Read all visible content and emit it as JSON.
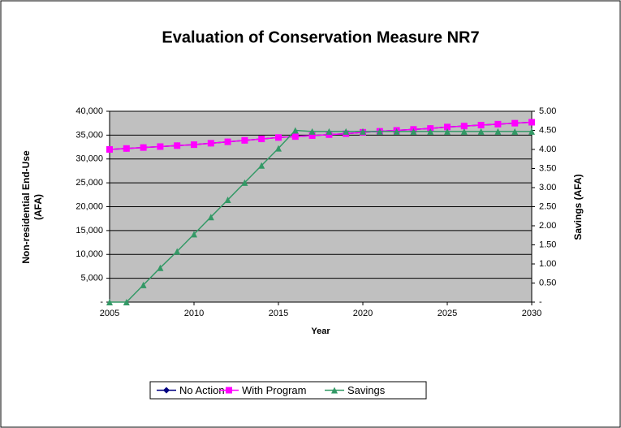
{
  "chart_data": {
    "type": "line",
    "title": "Evaluation of Conservation Measure NR7",
    "xlabel": "Year",
    "ylabel": [
      "Non-residential End-Use",
      "(AFA)"
    ],
    "y2label": "Savings (AFA)",
    "x": [
      2005,
      2006,
      2007,
      2008,
      2009,
      2010,
      2011,
      2012,
      2013,
      2014,
      2015,
      2016,
      2017,
      2018,
      2019,
      2020,
      2021,
      2022,
      2023,
      2024,
      2025,
      2026,
      2027,
      2028,
      2029,
      2030
    ],
    "xlim": [
      2005,
      2030
    ],
    "xticks": [
      2005,
      2010,
      2015,
      2020,
      2025,
      2030
    ],
    "ylim": [
      0,
      40000
    ],
    "yticks": [
      {
        "value": 0,
        "label": "-"
      },
      {
        "value": 5000,
        "label": "5,000"
      },
      {
        "value": 10000,
        "label": "10,000"
      },
      {
        "value": 15000,
        "label": "15,000"
      },
      {
        "value": 20000,
        "label": "20,000"
      },
      {
        "value": 25000,
        "label": "25,000"
      },
      {
        "value": 30000,
        "label": "30,000"
      },
      {
        "value": 35000,
        "label": "35,000"
      },
      {
        "value": 40000,
        "label": "40,000"
      }
    ],
    "y2lim": [
      0,
      5
    ],
    "y2ticks": [
      {
        "value": 0,
        "label": "-"
      },
      {
        "value": 0.5,
        "label": "0.50"
      },
      {
        "value": 1,
        "label": "1.00"
      },
      {
        "value": 1.5,
        "label": "1.50"
      },
      {
        "value": 2,
        "label": "2.00"
      },
      {
        "value": 2.5,
        "label": "2.50"
      },
      {
        "value": 3,
        "label": "3.00"
      },
      {
        "value": 3.5,
        "label": "3.50"
      },
      {
        "value": 4,
        "label": "4.00"
      },
      {
        "value": 4.5,
        "label": "4.50"
      },
      {
        "value": 5,
        "label": "5.00"
      }
    ],
    "grid": true,
    "legend": "bottom",
    "series": [
      {
        "name": "No Action",
        "color": "#000080",
        "marker": "diamond",
        "values": [
          32000,
          32200,
          32400,
          32600,
          32800,
          33000,
          33300,
          33600,
          33900,
          34200,
          34500,
          34700,
          34900,
          35100,
          35300,
          35600,
          35800,
          36000,
          36200,
          36400,
          36700,
          36900,
          37100,
          37300,
          37500,
          37700
        ]
      },
      {
        "name": "With Program",
        "color": "#FF00FF",
        "marker": "square",
        "values": [
          32000,
          32200,
          32400,
          32600,
          32800,
          33000,
          33300,
          33600,
          33900,
          34200,
          34500,
          34700,
          34900,
          35100,
          35300,
          35600,
          35800,
          36000,
          36200,
          36400,
          36700,
          36900,
          37100,
          37300,
          37500,
          37700
        ]
      },
      {
        "name": "Savings",
        "color": "#339966",
        "marker": "triangle",
        "axis": "y2",
        "values": [
          0,
          0,
          0.45,
          0.9,
          1.33,
          1.78,
          2.23,
          2.68,
          3.13,
          3.58,
          4.03,
          4.5,
          4.47,
          4.47,
          4.47,
          4.47,
          4.47,
          4.47,
          4.47,
          4.47,
          4.47,
          4.47,
          4.47,
          4.47,
          4.47,
          4.47
        ]
      }
    ]
  }
}
